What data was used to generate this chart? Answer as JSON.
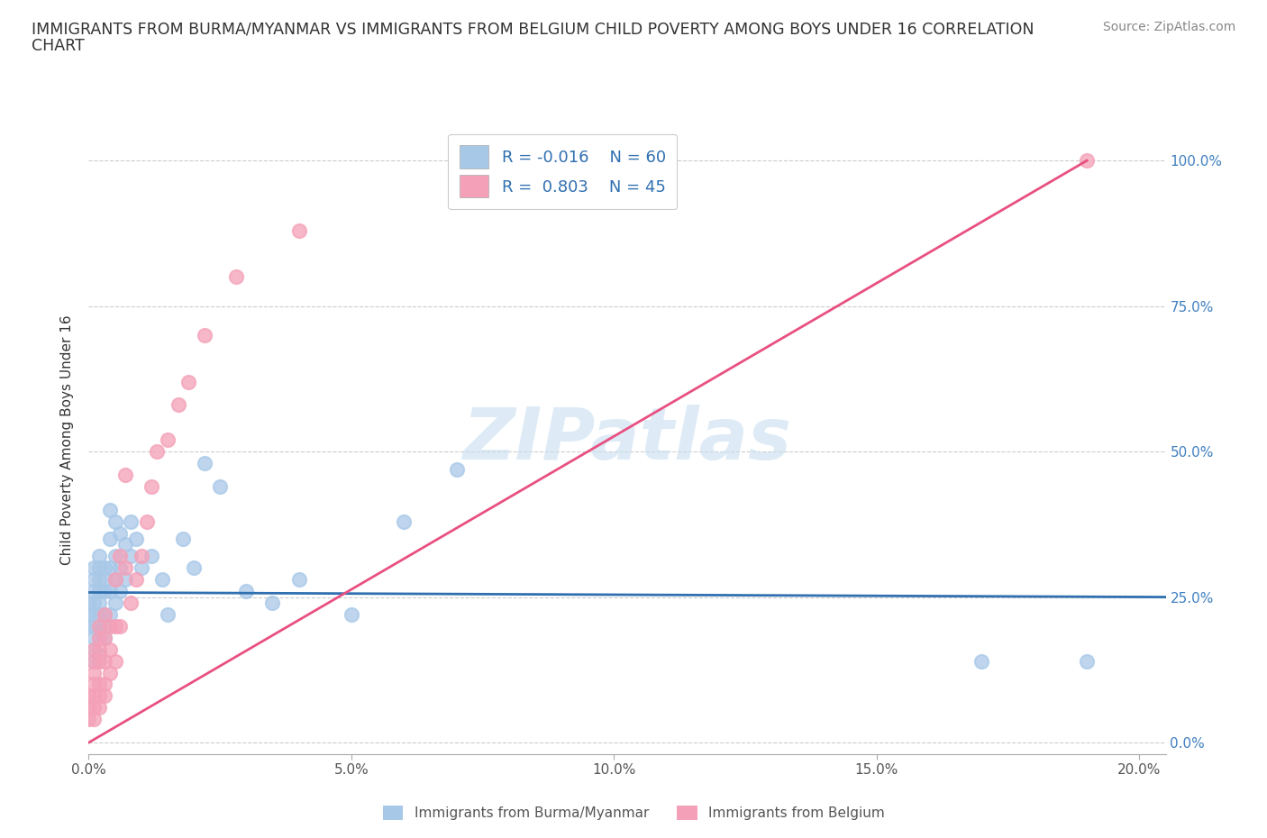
{
  "title_line1": "IMMIGRANTS FROM BURMA/MYANMAR VS IMMIGRANTS FROM BELGIUM CHILD POVERTY AMONG BOYS UNDER 16 CORRELATION",
  "title_line2": "CHART",
  "source": "Source: ZipAtlas.com",
  "ylabel": "Child Poverty Among Boys Under 16",
  "watermark": "ZIPatlas",
  "legend_r1": "R = -0.016",
  "legend_n1": "N = 60",
  "legend_r2": "R =  0.803",
  "legend_n2": "N = 45",
  "color_blue": "#a8c8e8",
  "color_pink": "#f4a0b8",
  "color_blue_line": "#3070b0",
  "color_pink_line": "#e85080",
  "xlim": [
    0.0,
    0.205
  ],
  "ylim": [
    -0.02,
    1.06
  ],
  "blue_scatter_x": [
    0.0,
    0.0,
    0.0,
    0.001,
    0.001,
    0.001,
    0.001,
    0.001,
    0.001,
    0.001,
    0.001,
    0.001,
    0.002,
    0.002,
    0.002,
    0.002,
    0.002,
    0.002,
    0.002,
    0.002,
    0.002,
    0.003,
    0.003,
    0.003,
    0.003,
    0.003,
    0.003,
    0.004,
    0.004,
    0.004,
    0.004,
    0.004,
    0.005,
    0.005,
    0.005,
    0.005,
    0.006,
    0.006,
    0.006,
    0.007,
    0.007,
    0.008,
    0.008,
    0.009,
    0.01,
    0.012,
    0.014,
    0.015,
    0.018,
    0.02,
    0.022,
    0.025,
    0.03,
    0.035,
    0.04,
    0.05,
    0.06,
    0.07,
    0.17,
    0.19
  ],
  "blue_scatter_y": [
    0.2,
    0.22,
    0.24,
    0.14,
    0.16,
    0.18,
    0.2,
    0.22,
    0.24,
    0.26,
    0.28,
    0.3,
    0.15,
    0.18,
    0.2,
    0.22,
    0.24,
    0.26,
    0.28,
    0.3,
    0.32,
    0.18,
    0.2,
    0.22,
    0.26,
    0.28,
    0.3,
    0.22,
    0.26,
    0.3,
    0.35,
    0.4,
    0.24,
    0.28,
    0.32,
    0.38,
    0.26,
    0.3,
    0.36,
    0.28,
    0.34,
    0.32,
    0.38,
    0.35,
    0.3,
    0.32,
    0.28,
    0.22,
    0.35,
    0.3,
    0.48,
    0.44,
    0.26,
    0.24,
    0.28,
    0.22,
    0.38,
    0.47,
    0.14,
    0.14
  ],
  "pink_scatter_x": [
    0.0,
    0.0,
    0.0,
    0.001,
    0.001,
    0.001,
    0.001,
    0.001,
    0.001,
    0.001,
    0.002,
    0.002,
    0.002,
    0.002,
    0.002,
    0.002,
    0.002,
    0.003,
    0.003,
    0.003,
    0.003,
    0.003,
    0.004,
    0.004,
    0.004,
    0.005,
    0.005,
    0.005,
    0.006,
    0.006,
    0.007,
    0.007,
    0.008,
    0.009,
    0.01,
    0.011,
    0.012,
    0.013,
    0.015,
    0.017,
    0.019,
    0.022,
    0.028,
    0.04,
    0.19
  ],
  "pink_scatter_y": [
    0.04,
    0.06,
    0.08,
    0.04,
    0.06,
    0.08,
    0.1,
    0.12,
    0.14,
    0.16,
    0.06,
    0.08,
    0.1,
    0.14,
    0.16,
    0.18,
    0.2,
    0.08,
    0.1,
    0.14,
    0.18,
    0.22,
    0.12,
    0.16,
    0.2,
    0.14,
    0.2,
    0.28,
    0.2,
    0.32,
    0.3,
    0.46,
    0.24,
    0.28,
    0.32,
    0.38,
    0.44,
    0.5,
    0.52,
    0.58,
    0.62,
    0.7,
    0.8,
    0.88,
    1.0
  ],
  "blue_line_x": [
    0.0,
    0.205
  ],
  "blue_line_y": [
    0.258,
    0.25
  ],
  "pink_line_x": [
    0.0,
    0.19
  ],
  "pink_line_y": [
    0.0,
    1.0
  ],
  "yticks": [
    0.0,
    0.25,
    0.5,
    0.75,
    1.0
  ],
  "ytick_labels_right": [
    "0.0%",
    "25.0%",
    "50.0%",
    "75.0%",
    "100.0%"
  ],
  "xticks": [
    0.0,
    0.05,
    0.1,
    0.15,
    0.2
  ],
  "xtick_labels": [
    "0.0%",
    "5.0%",
    "10.0%",
    "15.0%",
    "20.0%"
  ],
  "legend_bottom_labels": [
    "Immigrants from Burma/Myanmar",
    "Immigrants from Belgium"
  ]
}
